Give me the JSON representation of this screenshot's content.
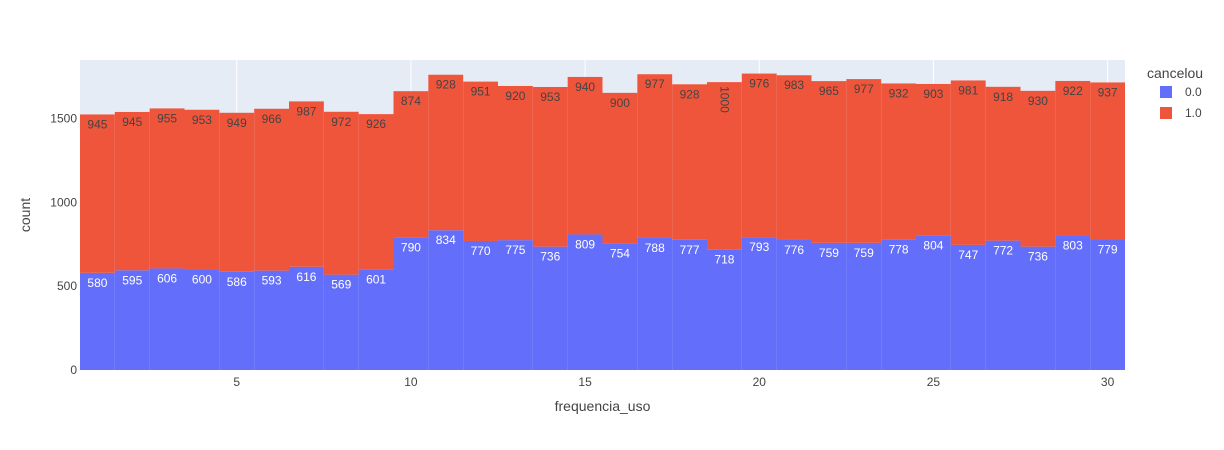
{
  "chart_data": {
    "type": "bar",
    "barmode": "stack",
    "x": [
      1,
      2,
      3,
      4,
      5,
      6,
      7,
      8,
      9,
      10,
      11,
      12,
      13,
      14,
      15,
      16,
      17,
      18,
      19,
      20,
      21,
      22,
      23,
      24,
      25,
      26,
      27,
      28,
      29,
      30
    ],
    "series": [
      {
        "name": "0.0",
        "color": "#636efa",
        "label_color": "#ffffff",
        "values": [
          580,
          595,
          606,
          600,
          586,
          593,
          616,
          569,
          601,
          790,
          834,
          770,
          775,
          736,
          809,
          754,
          788,
          777,
          718,
          793,
          776,
          759,
          759,
          778,
          804,
          747,
          772,
          736,
          803,
          779
        ]
      },
      {
        "name": "1.0",
        "color": "#ef553b",
        "label_color": "#444444",
        "values": [
          945,
          945,
          955,
          953,
          949,
          966,
          987,
          972,
          926,
          874,
          928,
          951,
          920,
          953,
          940,
          900,
          977,
          928,
          1000,
          976,
          983,
          965,
          977,
          932,
          903,
          981,
          918,
          930,
          922,
          937
        ]
      }
    ],
    "xlabel": "frequencia_uso",
    "ylabel": "count",
    "xlim": [
      0.5,
      30.5
    ],
    "ylim": [
      0,
      1850
    ],
    "x_ticks": [
      5,
      10,
      15,
      20,
      25,
      30
    ],
    "y_ticks": [
      0,
      500,
      1000,
      1500
    ],
    "legend_title": "cancelou",
    "legend_position": "top-right",
    "plot_background": "#e5ecf6",
    "grid": true,
    "rotated_labels": [
      {
        "series": 1,
        "index": 18
      }
    ]
  }
}
